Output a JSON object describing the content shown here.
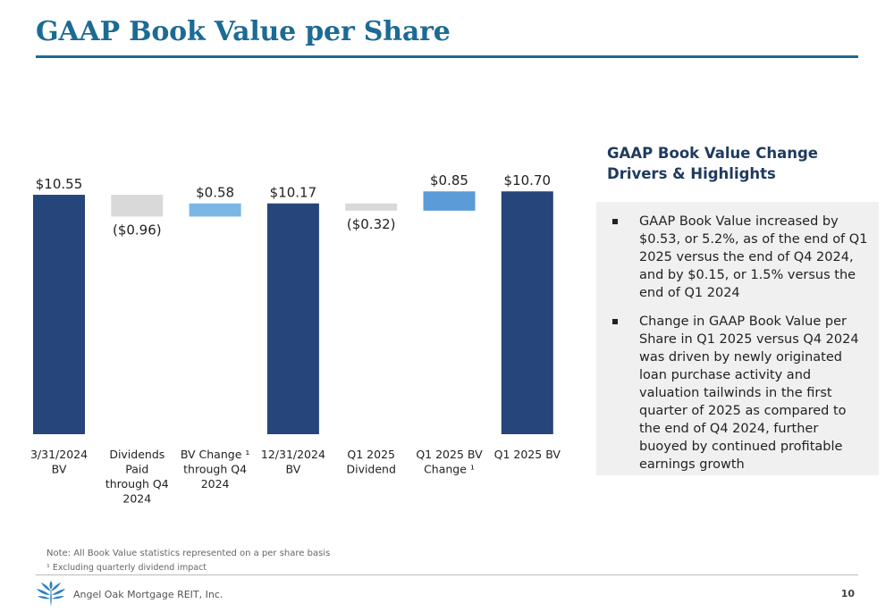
{
  "page": {
    "title": "GAAP Book Value per Share",
    "side_heading": "GAAP Book Value Change Drivers & Highlights",
    "highlights": [
      "GAAP Book Value increased by $0.53, or 5.2%, as of the end of Q1 2025 versus the end of Q4 2024, and by $0.15, or 1.5% versus the end of Q1 2024",
      "Change in GAAP Book Value per Share in Q1 2025 versus Q4 2024 was driven by newly originated loan purchase activity and valuation tailwinds in the first quarter of 2025 as compared to the end of Q4 2024, further buoyed by continued profitable earnings growth"
    ],
    "note": "Note: All Book Value statistics represented on a per share basis",
    "footnote": "¹ Excluding quarterly dividend impact",
    "company": "Angel Oak Mortgage REIT, Inc.",
    "page_number": "10",
    "logo_icon": "angel-oak-tree-logo",
    "bullet_icon": "square-bullet-icon"
  },
  "chart_data": {
    "type": "bar",
    "subtype": "waterfall",
    "categories": [
      [
        "3/31/2024",
        "BV"
      ],
      [
        "Dividends",
        "Paid",
        "through Q4",
        "2024"
      ],
      [
        "BV Change ¹",
        "through Q4",
        "2024"
      ],
      [
        "12/31/2024",
        "BV"
      ],
      [
        "Q1 2025",
        "Dividend"
      ],
      [
        "Q1 2025 BV",
        "Change ¹"
      ],
      [
        "Q1 2025 BV"
      ]
    ],
    "values": [
      10.55,
      -0.96,
      0.58,
      10.17,
      -0.32,
      0.85,
      10.7
    ],
    "bar_kinds": [
      "total",
      "decrease",
      "increase",
      "total",
      "decrease",
      "increase",
      "total"
    ],
    "labels": [
      "$10.55",
      "($0.96)",
      "$0.58",
      "$10.17",
      "($0.32)",
      "$0.85",
      "$10.70"
    ],
    "colors": {
      "total": "#26457a",
      "decrease": "#d9d9d9",
      "increase_1": "#7ab7e6",
      "increase_2": "#5a9bd8",
      "title": "#1c6b95"
    },
    "grid": false,
    "legend": "none"
  }
}
